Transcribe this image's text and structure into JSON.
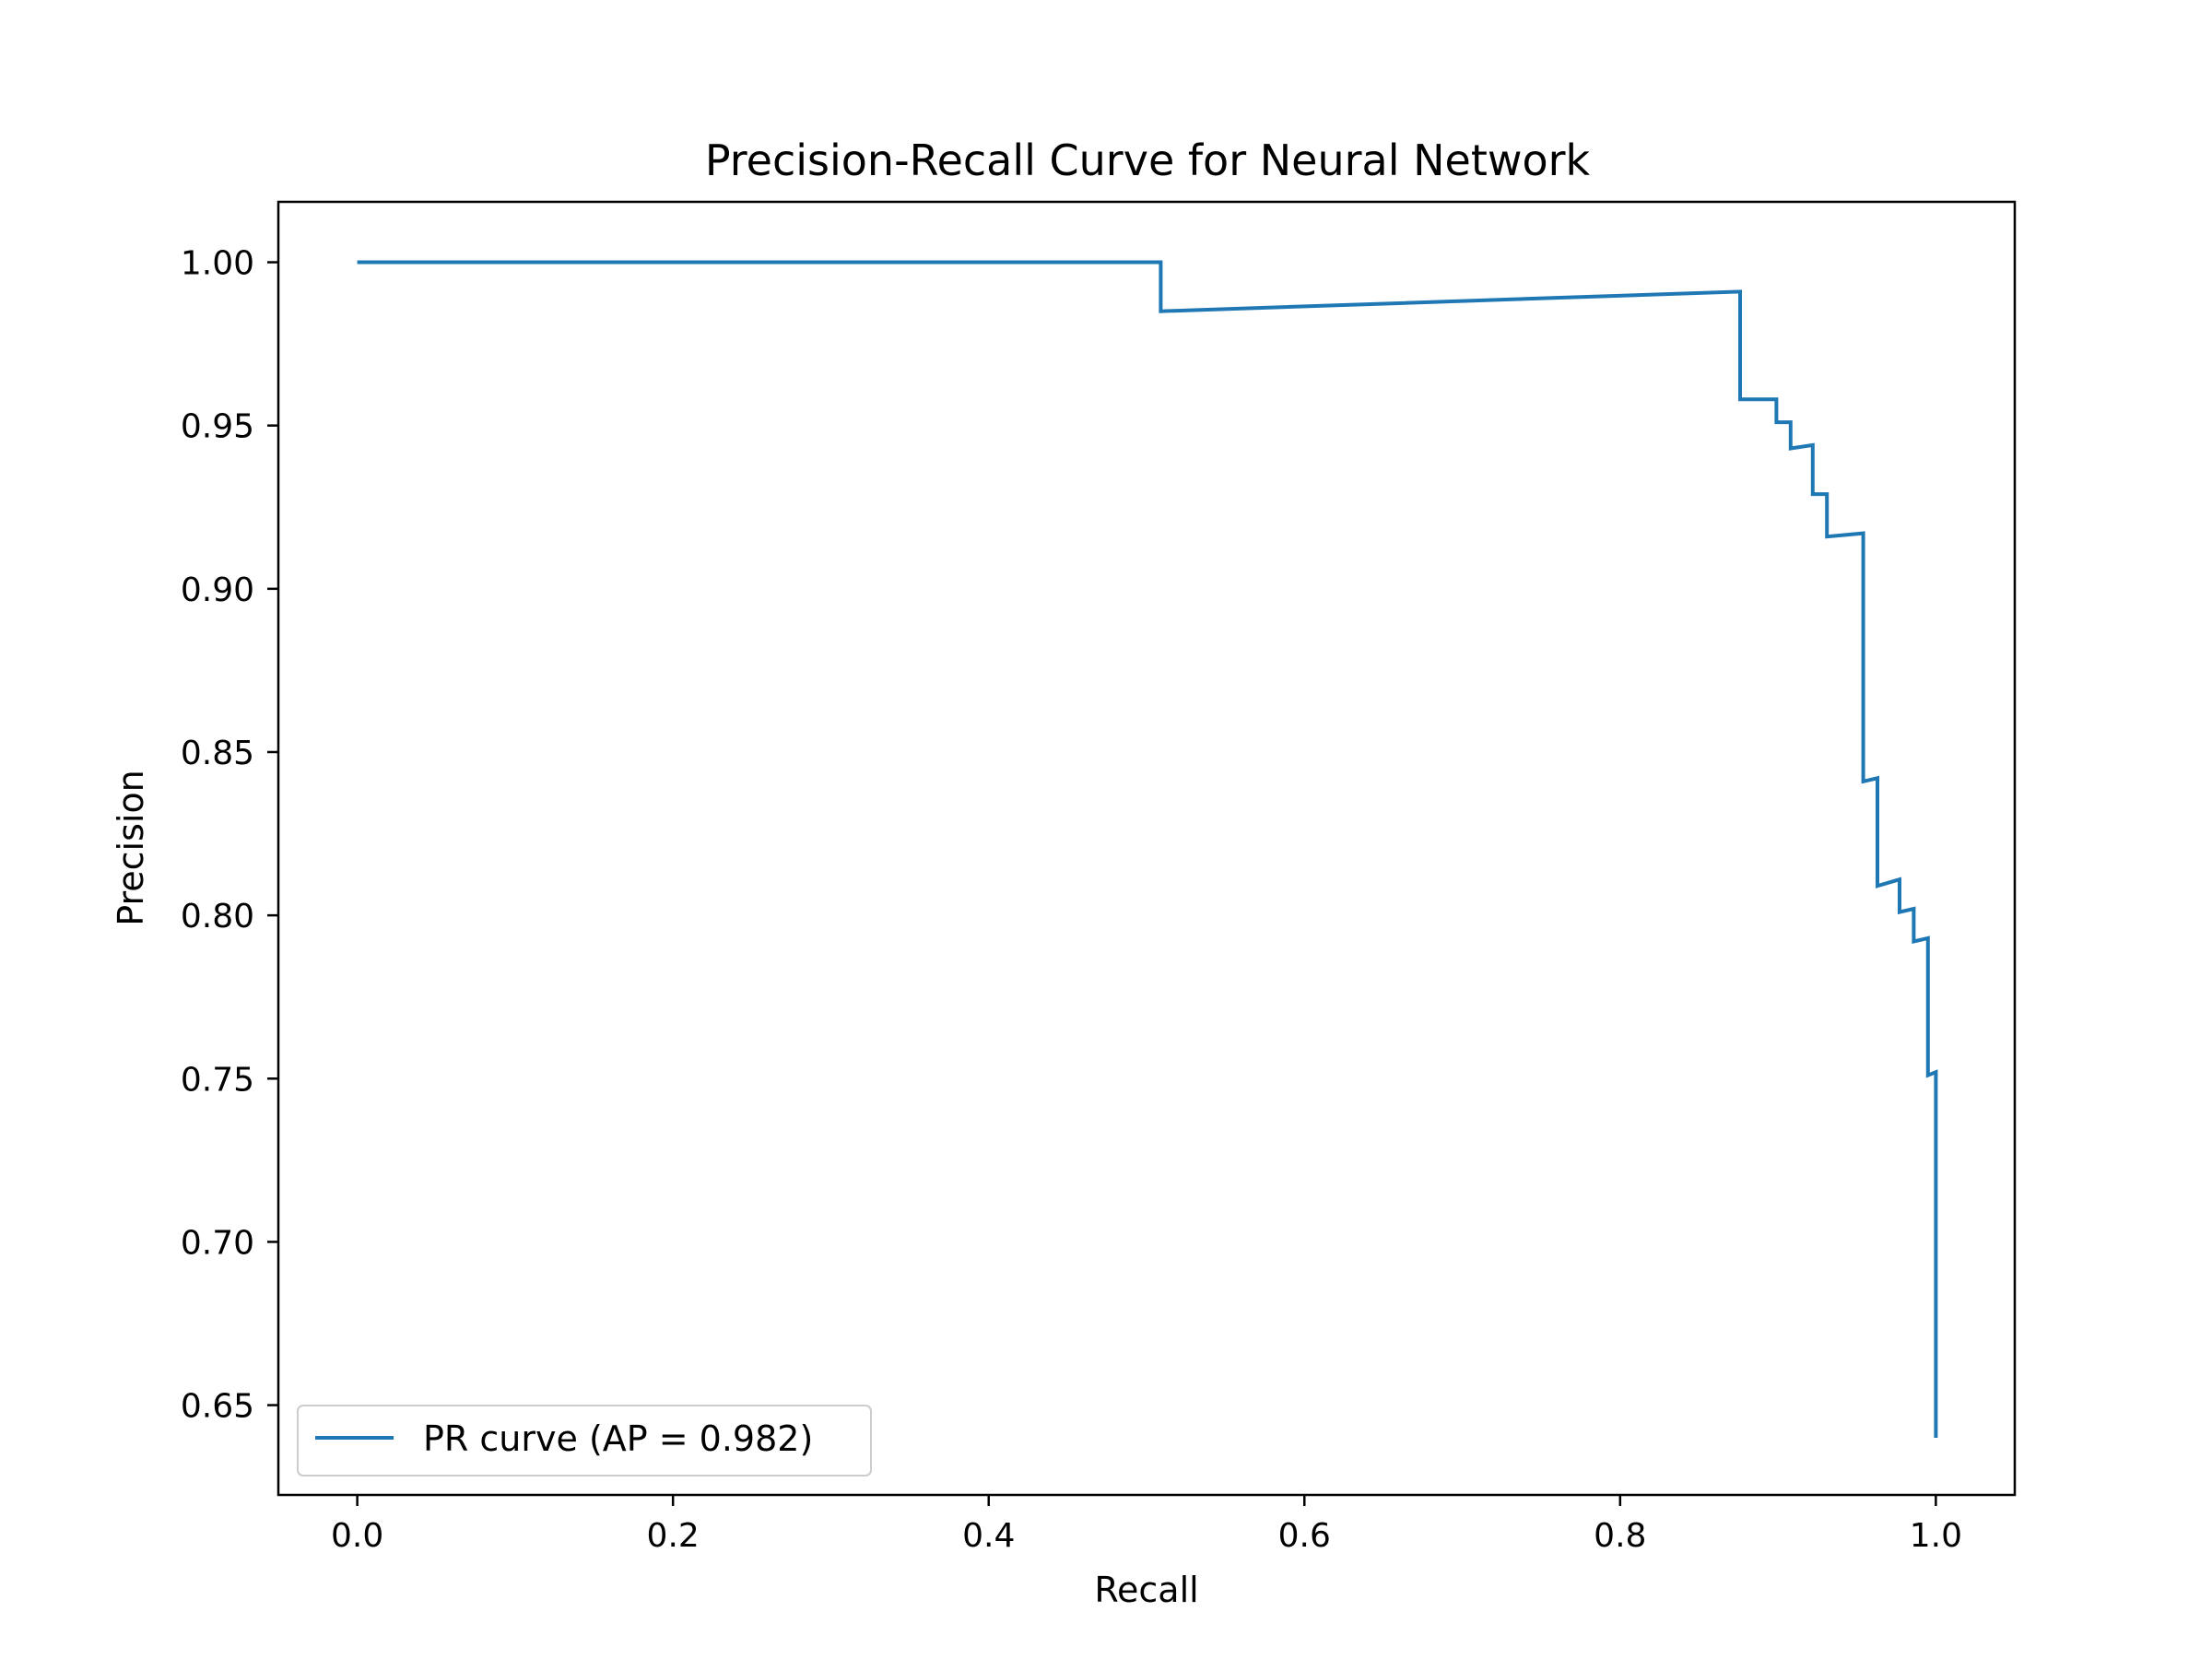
{
  "chart_data": {
    "type": "line",
    "title": "Precision-Recall Curve for Neural Network",
    "xlabel": "Recall",
    "ylabel": "Precision",
    "xlim": [
      -0.05,
      1.05
    ],
    "ylim": [
      0.6225,
      1.0185
    ],
    "xticks": [
      0.0,
      0.2,
      0.4,
      0.6,
      0.8,
      1.0
    ],
    "xtick_labels": [
      "0.0",
      "0.2",
      "0.4",
      "0.6",
      "0.8",
      "1.0"
    ],
    "yticks": [
      0.65,
      0.7,
      0.75,
      0.8,
      0.85,
      0.9,
      0.95,
      1.0
    ],
    "ytick_labels": [
      "0.65",
      "0.70",
      "0.75",
      "0.80",
      "0.85",
      "0.90",
      "0.95",
      "1.00"
    ],
    "grid": false,
    "legend_position": "lower-left",
    "series": [
      {
        "name": "PR curve (AP = 0.982)",
        "color": "#1f77b4",
        "x": [
          0.0,
          0.509,
          0.509,
          0.876,
          0.876,
          0.899,
          0.899,
          0.908,
          0.908,
          0.922,
          0.922,
          0.931,
          0.931,
          0.954,
          0.954,
          0.963,
          0.963,
          0.977,
          0.977,
          0.986,
          0.986,
          0.995,
          0.995,
          1.0,
          1.0
        ],
        "y": [
          1.0,
          1.0,
          0.985,
          0.991,
          0.958,
          0.958,
          0.951,
          0.951,
          0.943,
          0.944,
          0.929,
          0.929,
          0.916,
          0.917,
          0.841,
          0.842,
          0.809,
          0.811,
          0.801,
          0.802,
          0.792,
          0.793,
          0.751,
          0.752,
          0.64
        ]
      }
    ]
  }
}
